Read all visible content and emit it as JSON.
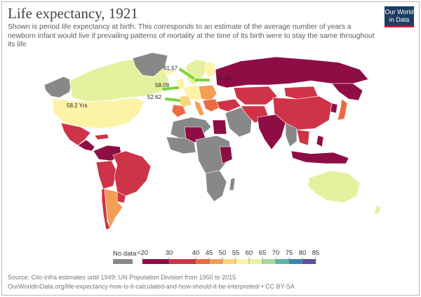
{
  "header": {
    "title": "Life expectancy, 1921",
    "subtitle": "Shown is period life expectancy at birth. This corresponds to an estimate of the average number of years a newborn infant would live if prevailing patterns of mortality at the time of its birth were to stay the same throughout its life",
    "logo_line1": "Our World",
    "logo_line2": "in Data"
  },
  "map": {
    "annotations": {
      "usa": "58.2 Yrs",
      "scandinavia": "61.57",
      "finland_russia": "61.01",
      "uk": "58.08",
      "france": "52.62"
    },
    "arrow_color": "#7fd23a",
    "colors": {
      "no_data": "#888888",
      "lt30": "#8e0d45",
      "c30_40": "#cf3347",
      "c40_45": "#ed6b43",
      "c45_50": "#f49d55",
      "c50_55": "#fbd47c",
      "c55_60": "#fdf3a6",
      "c60_65": "#e4f2a0",
      "c65_70": "#a8d8a0",
      "c70_75": "#5eb5a5",
      "c75_80": "#3a82b8",
      "c80_85": "#5b4fa0"
    }
  },
  "legend": {
    "no_data_label": "No data",
    "ticks": [
      "<20",
      "30",
      "40",
      "45",
      "50",
      "55",
      "60",
      "65",
      "70",
      "75",
      "80",
      "85"
    ]
  },
  "footer": {
    "source": "Source: Clio-Infra estimates until 1949; UN Population Division from 1950 to 2015",
    "url": "OurWorldInData.org/life-expectancy-how-is-it-calculated-and-how-should-it-be-interpreted/ • CC BY-SA"
  }
}
